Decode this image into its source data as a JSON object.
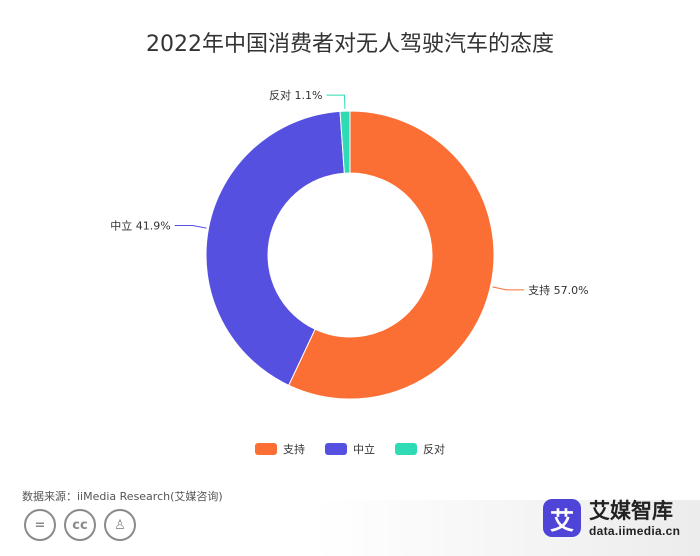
{
  "chart_data": {
    "type": "pie",
    "title": "2022年中国消费者对无人驾驶汽车的态度",
    "categories": [
      "支持",
      "中立",
      "反对"
    ],
    "values": [
      57.0,
      41.9,
      1.1
    ],
    "unit": "%",
    "colors": [
      "#fb6e34",
      "#5650e1",
      "#2edbb4"
    ],
    "data_labels": [
      "支持 57.0%",
      "中立 41.9%",
      "反对 1.1%"
    ],
    "legend_position": "bottom-center",
    "donut": true
  },
  "source": "数据来源：iiMedia Research(艾媒咨询)",
  "footer": {
    "license_icons": [
      "equals-icon",
      "cc-icon",
      "person-icon"
    ],
    "license_glyphs": [
      "=",
      "cc",
      "♙"
    ],
    "brand_logo_char": "艾",
    "brand_name": "艾媒智库",
    "brand_url": "data.iimedia.cn"
  }
}
